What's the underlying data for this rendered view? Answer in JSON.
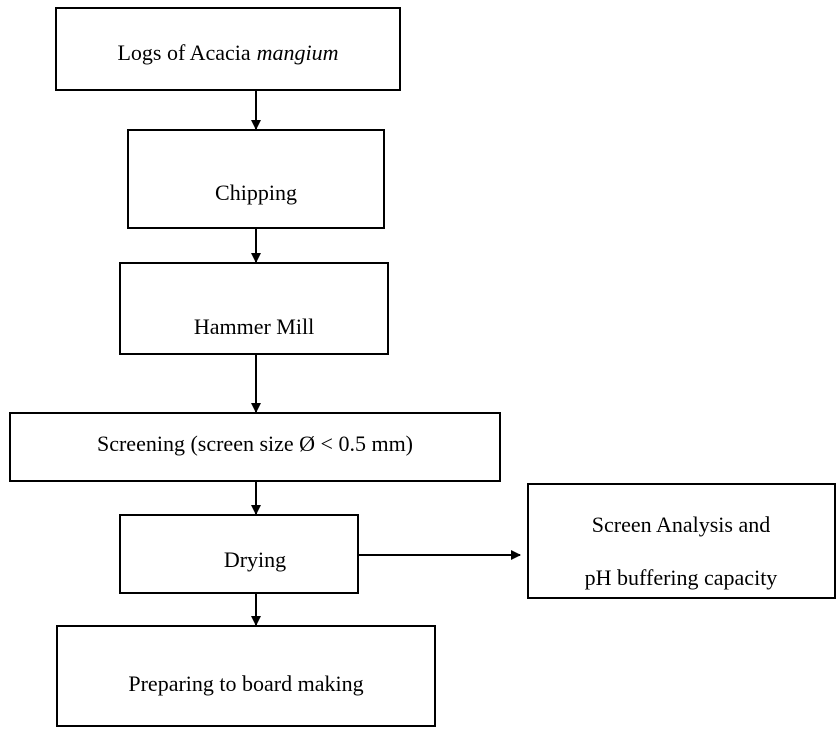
{
  "nodes": [
    {
      "label": "Logs of Acacia",
      "italic": "mangium"
    },
    {
      "label": "Chipping"
    },
    {
      "label": "Hammer Mill"
    },
    {
      "label": "Screening (screen size Ø < 0.5 mm)"
    },
    {
      "label": "Drying"
    },
    {
      "lines": [
        "Screen Analysis and",
        "pH buffering capacity"
      ]
    },
    {
      "label": "Preparing to board making"
    }
  ]
}
